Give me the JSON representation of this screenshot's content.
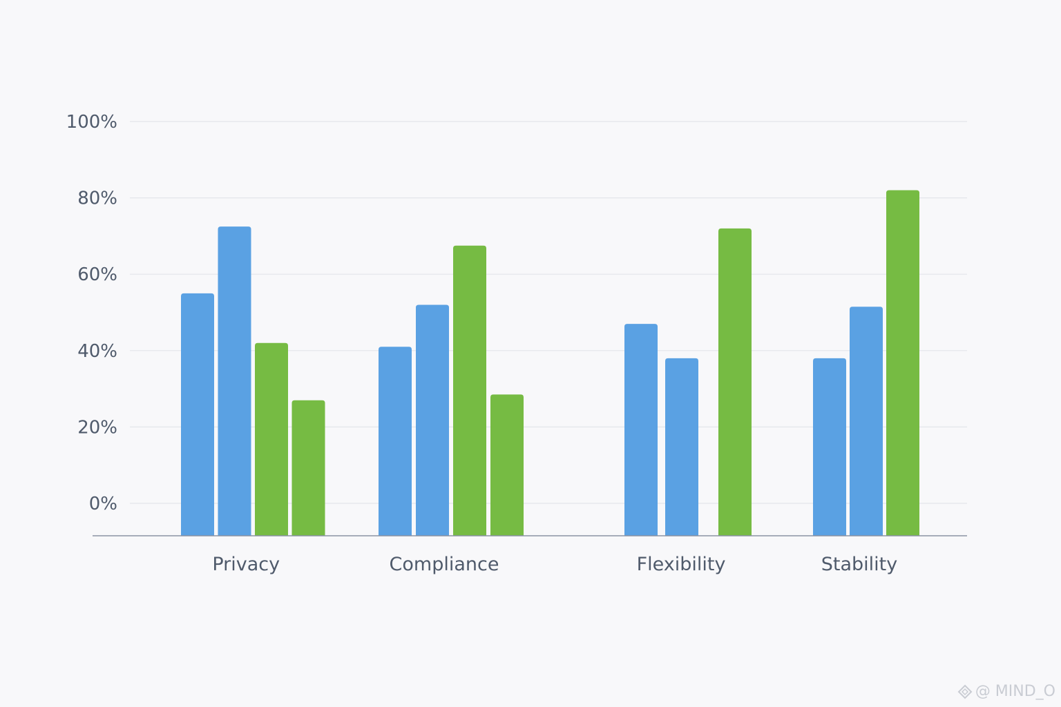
{
  "chart_data": {
    "type": "bar",
    "title": "",
    "xlabel": "",
    "ylabel": "",
    "ylim": [
      -8.5,
      100
    ],
    "yticks": [
      0,
      20,
      40,
      60,
      80,
      100
    ],
    "ytick_labels": [
      "0%",
      "20%",
      "40%",
      "60%",
      "80%",
      "100%"
    ],
    "categories": [
      "Privacy",
      "Compliance",
      "Flexibility",
      "Stability"
    ],
    "groups": [
      {
        "category": "Privacy",
        "values": [
          55,
          72.5,
          42,
          27
        ],
        "colors": [
          "#5aa1e3",
          "#5aa1e3",
          "#76bb43",
          "#76bb43"
        ]
      },
      {
        "category": "Compliance",
        "values": [
          41,
          52,
          67.5,
          28.5
        ],
        "colors": [
          "#5aa1e3",
          "#5aa1e3",
          "#76bb43",
          "#76bb43"
        ]
      },
      {
        "category": "Flexibility",
        "values": [
          47,
          38,
          72
        ],
        "colors": [
          "#5aa1e3",
          "#5aa1e3",
          "#76bb43"
        ]
      },
      {
        "category": "Stability",
        "values": [
          38,
          51.5,
          82
        ],
        "colors": [
          "#5aa1e3",
          "#5aa1e3",
          "#76bb43"
        ]
      }
    ],
    "grid": true,
    "legend": "none"
  },
  "colors": {
    "blue": "#5aa1e3",
    "green": "#76bb43",
    "grid": "#e3e5ea",
    "axis": "#8a93a3",
    "text": "#4f5a6b"
  },
  "watermark": {
    "icon": "diamond-logo-icon",
    "text": "@ MIND_O"
  }
}
